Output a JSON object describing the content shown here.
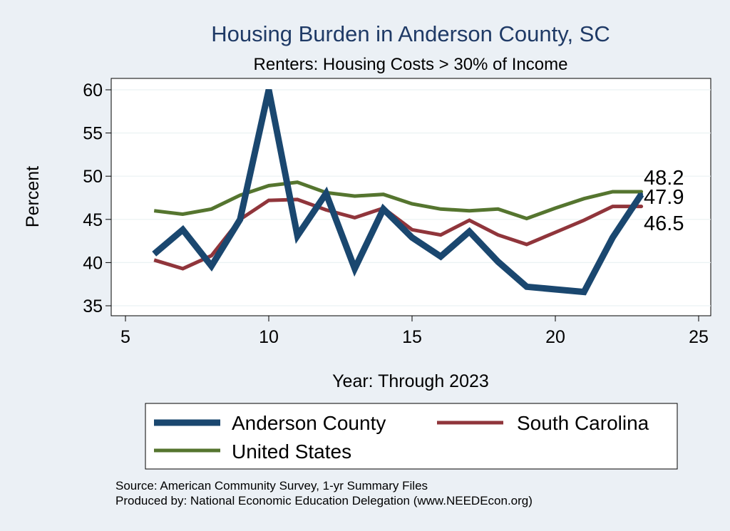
{
  "chart_data": {
    "type": "line",
    "title": "Housing Burden in Anderson County, SC",
    "subtitle": "Renters: Housing Costs > 30% of Income",
    "xlabel": "Year: Through 2023",
    "ylabel": "Percent",
    "xlim": [
      5,
      25
    ],
    "ylim": [
      34,
      61
    ],
    "xticks": [
      5,
      10,
      15,
      20,
      25
    ],
    "yticks": [
      35,
      40,
      45,
      50,
      55,
      60
    ],
    "grid": true,
    "x": [
      6,
      7,
      8,
      9,
      10,
      11,
      12,
      13,
      14,
      15,
      16,
      17,
      18,
      19,
      20,
      21,
      22,
      23
    ],
    "series": [
      {
        "name": "Anderson County",
        "color": "#1a476f",
        "values": [
          41.0,
          43.8,
          39.6,
          45.0,
          60.0,
          43.1,
          48.0,
          39.3,
          46.2,
          42.9,
          40.7,
          43.6,
          40.1,
          37.2,
          36.9,
          36.6,
          42.9,
          47.9
        ]
      },
      {
        "name": "South Carolina",
        "color": "#90353b",
        "values": [
          40.3,
          39.3,
          40.8,
          45.0,
          47.2,
          47.3,
          46.1,
          45.2,
          46.3,
          43.8,
          43.2,
          44.9,
          43.2,
          42.1,
          43.5,
          44.9,
          46.5,
          46.5
        ]
      },
      {
        "name": "United States",
        "color": "#55752f",
        "values": [
          46.0,
          45.6,
          46.2,
          47.8,
          48.9,
          49.3,
          48.1,
          47.7,
          47.9,
          46.8,
          46.2,
          46.0,
          46.2,
          45.1,
          46.3,
          47.4,
          48.2,
          48.2
        ]
      }
    ],
    "end_labels": [
      "48.2",
      "47.9",
      "46.5"
    ],
    "legend_position": "bottom",
    "notes": [
      "Source: American Community Survey, 1-yr Summary Files",
      "Produced by: National Economic Education Delegation (www.NEEDEcon.org)"
    ]
  }
}
